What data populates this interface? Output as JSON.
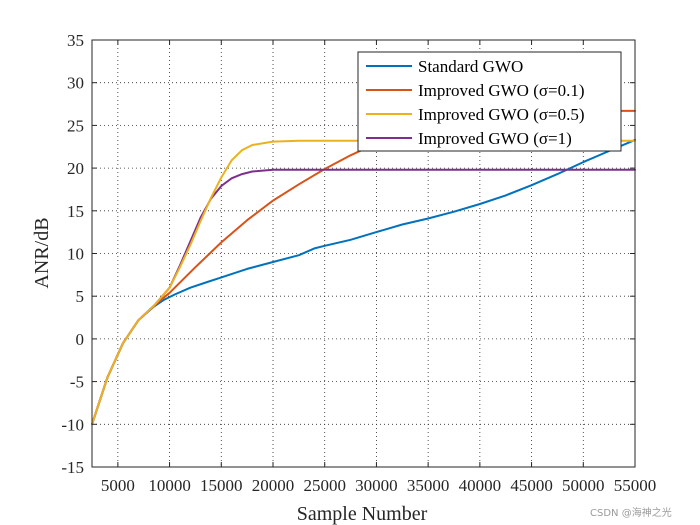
{
  "chart_data": {
    "type": "line",
    "title": "",
    "xlabel": "Sample Number",
    "ylabel": "ANR/dB",
    "xlim": [
      2500,
      55000
    ],
    "ylim": [
      -15,
      35
    ],
    "xticks": [
      5000,
      10000,
      15000,
      20000,
      25000,
      30000,
      35000,
      40000,
      45000,
      50000,
      55000
    ],
    "yticks": [
      -15,
      -10,
      -5,
      0,
      5,
      10,
      15,
      20,
      25,
      30,
      35
    ],
    "grid": true,
    "legend_position": "top-right",
    "series": [
      {
        "name": "Standard GWO",
        "color": "#0072BD",
        "x": [
          2500,
          4000,
          5500,
          7000,
          8500,
          9500,
          10500,
          12000,
          13500,
          15000,
          17500,
          20000,
          22500,
          24000,
          25000,
          27500,
          30000,
          32500,
          35000,
          37500,
          40000,
          42500,
          45000,
          47500,
          50000,
          52500,
          55000
        ],
        "y": [
          -10,
          -4.5,
          -0.5,
          2.2,
          3.8,
          4.6,
          5.2,
          6,
          6.6,
          7.2,
          8.2,
          9,
          9.8,
          10.6,
          10.9,
          11.6,
          12.5,
          13.4,
          14.1,
          14.9,
          15.8,
          16.8,
          18,
          19.3,
          20.7,
          22,
          23.3
        ]
      },
      {
        "name": "Improved GWO (σ=0.1)",
        "color": "#D95319",
        "x": [
          2500,
          4000,
          5500,
          7000,
          8500,
          10000,
          12500,
          15000,
          17500,
          20000,
          22500,
          25000,
          27500,
          30000,
          32500,
          35000,
          40000,
          45000,
          50000,
          52000,
          53500,
          55000
        ],
        "y": [
          -10,
          -4.5,
          -0.5,
          2.2,
          3.9,
          5.4,
          8.4,
          11.3,
          13.9,
          16.2,
          18.1,
          19.9,
          21.5,
          22.9,
          24,
          24.8,
          25.8,
          26.3,
          26.6,
          26.7,
          26.7,
          26.7
        ]
      },
      {
        "name": "Improved GWO (σ=0.5)",
        "color": "#EDB120",
        "x": [
          2500,
          4000,
          5500,
          7000,
          8500,
          10000,
          11000,
          12000,
          13000,
          14000,
          15000,
          16000,
          17000,
          18000,
          20000,
          22500,
          25000,
          30000,
          35000,
          40000,
          45000,
          50000,
          55000
        ],
        "y": [
          -10,
          -4.5,
          -0.5,
          2.2,
          3.9,
          6,
          8.4,
          11,
          13.8,
          16.5,
          18.9,
          20.9,
          22.1,
          22.7,
          23.1,
          23.2,
          23.2,
          23.2,
          23.2,
          23.2,
          23.2,
          23.2,
          23.2
        ]
      },
      {
        "name": "Improved GWO (σ=1)",
        "color": "#7E2F8E",
        "x": [
          2500,
          4000,
          5500,
          7000,
          8500,
          10000,
          11000,
          12000,
          13000,
          14000,
          15000,
          16000,
          17000,
          18000,
          20000,
          22500,
          25000,
          30000,
          35000,
          40000,
          45000,
          50000,
          55000
        ],
        "y": [
          -10,
          -4.5,
          -0.5,
          2.2,
          3.9,
          6,
          8.6,
          11.4,
          14.2,
          16.4,
          17.9,
          18.8,
          19.3,
          19.6,
          19.8,
          19.8,
          19.8,
          19.8,
          19.8,
          19.8,
          19.8,
          19.8,
          19.8
        ]
      }
    ]
  },
  "watermark": "CSDN @海神之光"
}
